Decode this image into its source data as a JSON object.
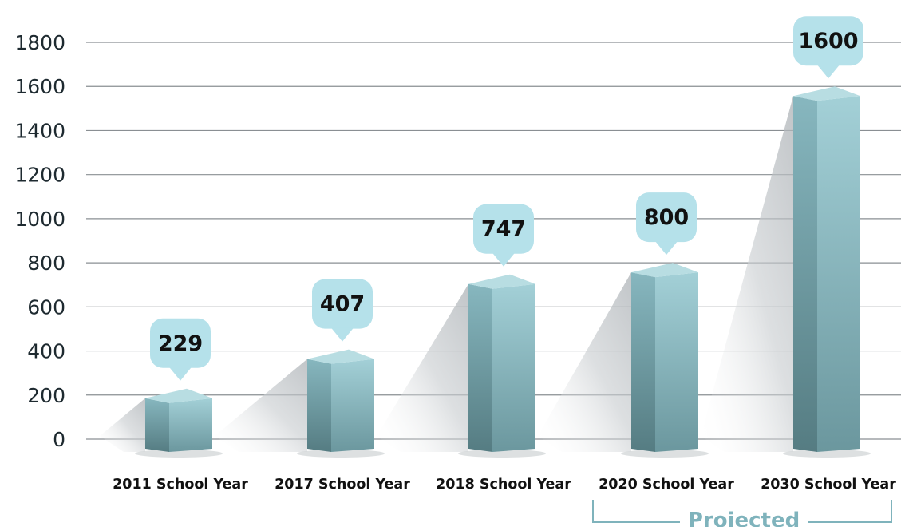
{
  "chart_data": {
    "type": "bar",
    "categories": [
      "2011 School Year",
      "2017 School Year",
      "2018 School Year",
      "2020 School Year",
      "2030 School Year"
    ],
    "values": [
      229,
      407,
      747,
      800,
      1600
    ],
    "value_labels": [
      "229",
      "407",
      "747",
      "800",
      "1600"
    ],
    "yticks": [
      0,
      200,
      400,
      600,
      800,
      1000,
      1200,
      1400,
      1600,
      1800
    ],
    "ylim": [
      0,
      1800
    ],
    "grid": true,
    "bar_style": "3d",
    "bar_colors": {
      "front": "#8fbfc7",
      "side": "#6f9ea6",
      "top": "#b8dde2"
    },
    "callout_color": "#b5e1ea",
    "grid_color": "#8a8f93",
    "annotation": {
      "text": "Projected",
      "applies_to": [
        "2020 School Year",
        "2030 School Year"
      ],
      "color": "#7fb3bc"
    }
  }
}
